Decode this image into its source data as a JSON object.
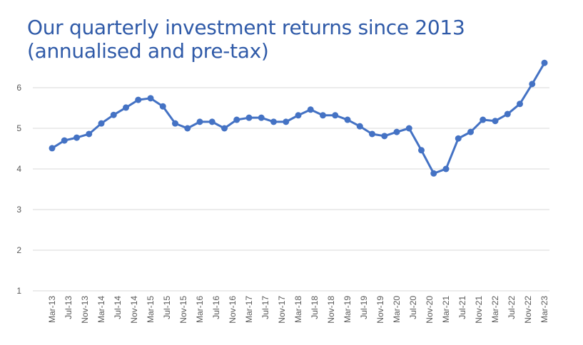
{
  "chart_data": {
    "type": "line",
    "title": "Our quarterly investment returns since 2013 (annualised and pre-tax)",
    "title_lines": [
      "Our quarterly investment returns since 2013",
      "(annualised and pre-tax)"
    ],
    "xlabel": "",
    "ylabel": "",
    "ylim": [
      1,
      6.8
    ],
    "yticks": [
      1,
      2,
      3,
      4,
      5,
      6
    ],
    "grid": true,
    "legend": "none",
    "color": "#4472C4",
    "x_tick_labels": [
      "Mar-13",
      "Jul-13",
      "Nov-13",
      "Mar-14",
      "Jul-14",
      "Nov-14",
      "Mar-15",
      "Jul-15",
      "Nov-15",
      "Mar-16",
      "Jul-16",
      "Nov-16",
      "Mar-17",
      "Jul-17",
      "Nov-17",
      "Mar-18",
      "Jul-18",
      "Nov-18",
      "Mar-19",
      "Jul-19",
      "Nov-19",
      "Mar-20",
      "Jul-20",
      "Nov-20",
      "Mar-21",
      "Jul-21",
      "Nov-21",
      "Mar-22",
      "Jul-22",
      "Nov-22",
      "Mar-23"
    ],
    "series": [
      {
        "values": [
          4.51,
          4.7,
          4.77,
          4.86,
          5.12,
          5.33,
          5.51,
          5.7,
          5.74,
          5.54,
          5.12,
          5.0,
          5.16,
          5.16,
          5.0,
          5.21,
          5.26,
          5.26,
          5.16,
          5.16,
          5.32,
          5.46,
          5.32,
          5.32,
          5.21,
          5.05,
          4.86,
          4.81,
          4.91,
          5.0,
          4.46,
          3.89,
          4.0,
          4.75,
          4.91,
          5.21,
          5.18,
          5.35,
          5.6,
          6.09,
          6.61
        ]
      }
    ]
  }
}
